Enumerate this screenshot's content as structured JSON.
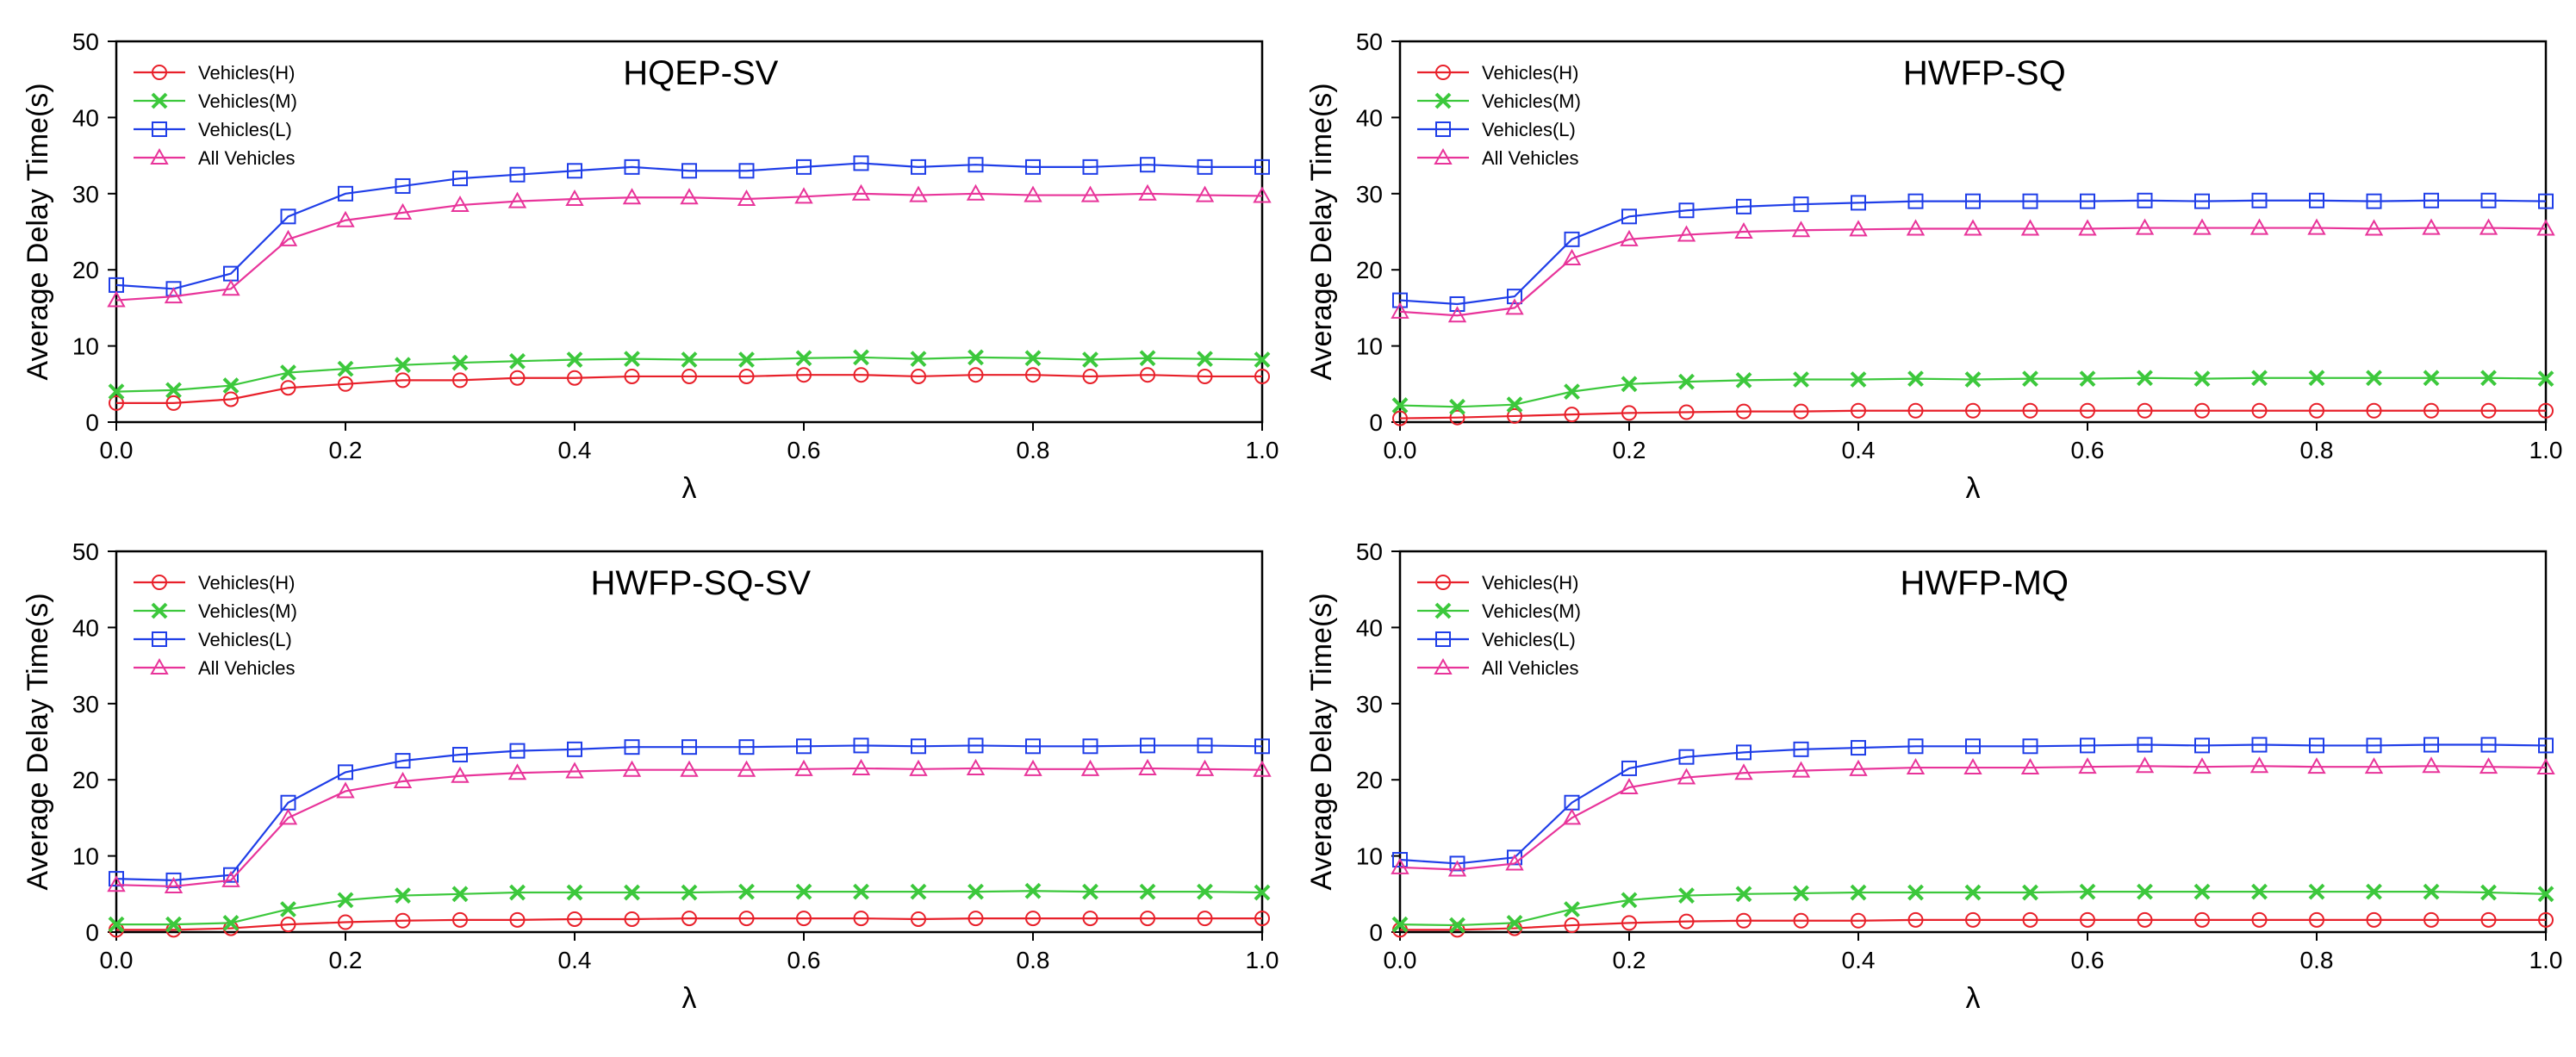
{
  "chart_data": [
    {
      "type": "line",
      "title": "HQEP-SV",
      "xlabel": "λ",
      "ylabel": "Average Delay Time(s)",
      "xlim": [
        0,
        1.0
      ],
      "ylim": [
        0,
        50
      ],
      "xticks": [
        "0.0",
        "0.2",
        "0.4",
        "0.6",
        "0.8",
        "1.0"
      ],
      "yticks": [
        "0",
        "10",
        "20",
        "30",
        "40",
        "50"
      ],
      "grid": false,
      "legend_position": "top-left",
      "x": [
        0.0,
        0.05,
        0.1,
        0.15,
        0.2,
        0.25,
        0.3,
        0.35,
        0.4,
        0.45,
        0.5,
        0.55,
        0.6,
        0.65,
        0.7,
        0.75,
        0.8,
        0.85,
        0.9,
        0.95,
        1.0
      ],
      "series": [
        {
          "name": "Vehicles(H)",
          "color": "#e8202a",
          "marker": "circle",
          "values": [
            2.5,
            2.5,
            3,
            4.5,
            5,
            5.5,
            5.5,
            5.8,
            5.8,
            6,
            6,
            6,
            6.2,
            6.2,
            6,
            6.2,
            6.2,
            6,
            6.2,
            6,
            6
          ]
        },
        {
          "name": "Vehicles(M)",
          "color": "#3cc83c",
          "marker": "x",
          "values": [
            4,
            4.2,
            4.8,
            6.5,
            7,
            7.5,
            7.8,
            8,
            8.2,
            8.3,
            8.2,
            8.2,
            8.4,
            8.5,
            8.3,
            8.5,
            8.4,
            8.2,
            8.4,
            8.3,
            8.2
          ]
        },
        {
          "name": "Vehicles(L)",
          "color": "#1f3ee8",
          "marker": "square",
          "values": [
            18,
            17.5,
            19.5,
            27,
            30,
            31,
            32,
            32.5,
            33,
            33.5,
            33,
            33,
            33.5,
            34,
            33.5,
            33.8,
            33.5,
            33.5,
            33.8,
            33.5,
            33.5
          ]
        },
        {
          "name": "All Vehicles",
          "color": "#e8349a",
          "marker": "triangle",
          "values": [
            16,
            16.5,
            17.5,
            24,
            26.5,
            27.5,
            28.5,
            29,
            29.3,
            29.5,
            29.5,
            29.3,
            29.6,
            30,
            29.8,
            30,
            29.8,
            29.8,
            30,
            29.8,
            29.7
          ]
        }
      ]
    },
    {
      "type": "line",
      "title": "HWFP-SQ",
      "xlabel": "λ",
      "ylabel": "Average Delay Time(s)",
      "xlim": [
        0,
        1.0
      ],
      "ylim": [
        0,
        50
      ],
      "xticks": [
        "0.0",
        "0.2",
        "0.4",
        "0.6",
        "0.8",
        "1.0"
      ],
      "yticks": [
        "0",
        "10",
        "20",
        "30",
        "40",
        "50"
      ],
      "grid": false,
      "legend_position": "top-left",
      "x": [
        0.0,
        0.05,
        0.1,
        0.15,
        0.2,
        0.25,
        0.3,
        0.35,
        0.4,
        0.45,
        0.5,
        0.55,
        0.6,
        0.65,
        0.7,
        0.75,
        0.8,
        0.85,
        0.9,
        0.95,
        1.0
      ],
      "series": [
        {
          "name": "Vehicles(H)",
          "color": "#e8202a",
          "marker": "circle",
          "values": [
            0.5,
            0.6,
            0.8,
            1,
            1.2,
            1.3,
            1.4,
            1.4,
            1.5,
            1.5,
            1.5,
            1.5,
            1.5,
            1.5,
            1.5,
            1.5,
            1.5,
            1.5,
            1.5,
            1.5,
            1.5
          ]
        },
        {
          "name": "Vehicles(M)",
          "color": "#3cc83c",
          "marker": "x",
          "values": [
            2.2,
            2,
            2.3,
            4,
            5,
            5.3,
            5.5,
            5.6,
            5.6,
            5.7,
            5.6,
            5.7,
            5.7,
            5.8,
            5.7,
            5.8,
            5.8,
            5.8,
            5.8,
            5.8,
            5.7
          ]
        },
        {
          "name": "Vehicles(L)",
          "color": "#1f3ee8",
          "marker": "square",
          "values": [
            16,
            15.5,
            16.5,
            24,
            27,
            27.8,
            28.3,
            28.6,
            28.8,
            29,
            29,
            29,
            29,
            29.1,
            29,
            29.1,
            29.1,
            29,
            29.1,
            29.1,
            29
          ]
        },
        {
          "name": "All Vehicles",
          "color": "#e8349a",
          "marker": "triangle",
          "values": [
            14.5,
            14,
            15,
            21.5,
            24,
            24.6,
            25,
            25.2,
            25.3,
            25.4,
            25.4,
            25.4,
            25.4,
            25.5,
            25.5,
            25.5,
            25.5,
            25.4,
            25.5,
            25.5,
            25.4
          ]
        }
      ]
    },
    {
      "type": "line",
      "title": "HWFP-SQ-SV",
      "xlabel": "λ",
      "ylabel": "Average Delay Time(s)",
      "xlim": [
        0,
        1.0
      ],
      "ylim": [
        0,
        50
      ],
      "xticks": [
        "0.0",
        "0.2",
        "0.4",
        "0.6",
        "0.8",
        "1.0"
      ],
      "yticks": [
        "0",
        "10",
        "20",
        "30",
        "40",
        "50"
      ],
      "grid": false,
      "legend_position": "top-left",
      "x": [
        0.0,
        0.05,
        0.1,
        0.15,
        0.2,
        0.25,
        0.3,
        0.35,
        0.4,
        0.45,
        0.5,
        0.55,
        0.6,
        0.65,
        0.7,
        0.75,
        0.8,
        0.85,
        0.9,
        0.95,
        1.0
      ],
      "series": [
        {
          "name": "Vehicles(H)",
          "color": "#e8202a",
          "marker": "circle",
          "values": [
            0.3,
            0.3,
            0.5,
            1,
            1.3,
            1.5,
            1.6,
            1.6,
            1.7,
            1.7,
            1.8,
            1.8,
            1.8,
            1.8,
            1.7,
            1.8,
            1.8,
            1.8,
            1.8,
            1.8,
            1.8
          ]
        },
        {
          "name": "Vehicles(M)",
          "color": "#3cc83c",
          "marker": "x",
          "values": [
            1,
            1,
            1.2,
            3,
            4.2,
            4.8,
            5,
            5.2,
            5.2,
            5.2,
            5.2,
            5.3,
            5.3,
            5.3,
            5.3,
            5.3,
            5.4,
            5.3,
            5.3,
            5.3,
            5.2
          ]
        },
        {
          "name": "Vehicles(L)",
          "color": "#1f3ee8",
          "marker": "square",
          "values": [
            7,
            6.8,
            7.5,
            17,
            21,
            22.5,
            23.3,
            23.8,
            24,
            24.3,
            24.3,
            24.3,
            24.4,
            24.5,
            24.4,
            24.5,
            24.4,
            24.4,
            24.5,
            24.5,
            24.4
          ]
        },
        {
          "name": "All Vehicles",
          "color": "#e8349a",
          "marker": "triangle",
          "values": [
            6.2,
            6,
            6.8,
            15,
            18.5,
            19.8,
            20.5,
            20.9,
            21.1,
            21.3,
            21.3,
            21.3,
            21.4,
            21.5,
            21.4,
            21.5,
            21.4,
            21.4,
            21.5,
            21.4,
            21.3
          ]
        }
      ]
    },
    {
      "type": "line",
      "title": "HWFP-MQ",
      "xlabel": "λ",
      "ylabel": "Average Delay Time(s)",
      "xlim": [
        0,
        1.0
      ],
      "ylim": [
        0,
        50
      ],
      "xticks": [
        "0.0",
        "0.2",
        "0.4",
        "0.6",
        "0.8",
        "1.0"
      ],
      "yticks": [
        "0",
        "10",
        "20",
        "30",
        "40",
        "50"
      ],
      "grid": false,
      "legend_position": "top-left",
      "x": [
        0.0,
        0.05,
        0.1,
        0.15,
        0.2,
        0.25,
        0.3,
        0.35,
        0.4,
        0.45,
        0.5,
        0.55,
        0.6,
        0.65,
        0.7,
        0.75,
        0.8,
        0.85,
        0.9,
        0.95,
        1.0
      ],
      "series": [
        {
          "name": "Vehicles(H)",
          "color": "#e8202a",
          "marker": "circle",
          "values": [
            0.3,
            0.3,
            0.5,
            0.9,
            1.2,
            1.4,
            1.5,
            1.5,
            1.5,
            1.6,
            1.6,
            1.6,
            1.6,
            1.6,
            1.6,
            1.6,
            1.6,
            1.6,
            1.6,
            1.6,
            1.6
          ]
        },
        {
          "name": "Vehicles(M)",
          "color": "#3cc83c",
          "marker": "x",
          "values": [
            1,
            0.9,
            1.2,
            3,
            4.2,
            4.8,
            5,
            5.1,
            5.2,
            5.2,
            5.2,
            5.2,
            5.3,
            5.3,
            5.3,
            5.3,
            5.3,
            5.3,
            5.3,
            5.2,
            5
          ]
        },
        {
          "name": "Vehicles(L)",
          "color": "#1f3ee8",
          "marker": "square",
          "values": [
            9.5,
            9,
            9.8,
            17,
            21.5,
            23,
            23.6,
            24,
            24.2,
            24.4,
            24.4,
            24.4,
            24.5,
            24.6,
            24.5,
            24.6,
            24.5,
            24.5,
            24.6,
            24.6,
            24.5
          ]
        },
        {
          "name": "All Vehicles",
          "color": "#e8349a",
          "marker": "triangle",
          "values": [
            8.5,
            8.2,
            9,
            15,
            19,
            20.3,
            20.9,
            21.2,
            21.4,
            21.6,
            21.6,
            21.6,
            21.7,
            21.8,
            21.7,
            21.8,
            21.7,
            21.7,
            21.8,
            21.7,
            21.6
          ]
        }
      ]
    }
  ]
}
